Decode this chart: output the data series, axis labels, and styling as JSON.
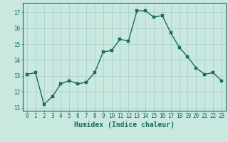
{
  "x": [
    0,
    1,
    2,
    3,
    4,
    5,
    6,
    7,
    8,
    9,
    10,
    11,
    12,
    13,
    14,
    15,
    16,
    17,
    18,
    19,
    20,
    21,
    22,
    23
  ],
  "y": [
    13.1,
    13.2,
    11.2,
    11.7,
    12.5,
    12.7,
    12.5,
    12.6,
    13.2,
    14.5,
    14.6,
    15.3,
    15.2,
    17.1,
    17.1,
    16.7,
    16.8,
    15.7,
    14.8,
    14.2,
    13.5,
    13.1,
    13.2,
    12.7
  ],
  "line_color": "#1a6b5a",
  "marker_color": "#1a6b5a",
  "bg_color": "#c8e8e0",
  "grid_color": "#a8ccc4",
  "xlabel": "Humidex (Indice chaleur)",
  "xlim": [
    -0.5,
    23.5
  ],
  "ylim": [
    10.8,
    17.6
  ],
  "yticks": [
    11,
    12,
    13,
    14,
    15,
    16,
    17
  ],
  "xticks": [
    0,
    1,
    2,
    3,
    4,
    5,
    6,
    7,
    8,
    9,
    10,
    11,
    12,
    13,
    14,
    15,
    16,
    17,
    18,
    19,
    20,
    21,
    22,
    23
  ],
  "tick_fontsize": 5.5,
  "xlabel_fontsize": 7,
  "line_width": 1.0,
  "marker_size": 2.5
}
